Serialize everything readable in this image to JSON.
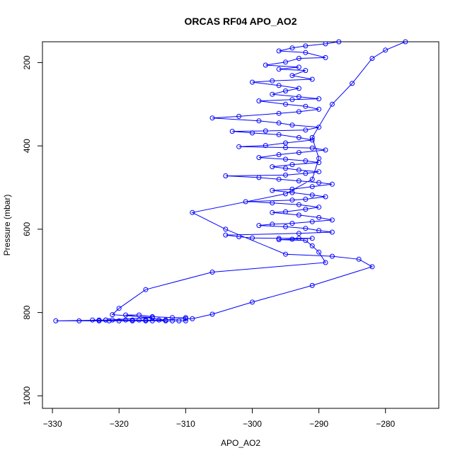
{
  "chart_data": {
    "type": "line",
    "title": "ORCAS RF04 APO_AO2",
    "xlabel": "APO_AO2",
    "ylabel": "Pressure (mbar)",
    "xlim": [
      -331.5,
      -272
    ],
    "ylim": [
      1030,
      150
    ],
    "y_reversed": true,
    "xticks": [
      -330,
      -320,
      -310,
      -300,
      -290,
      -280
    ],
    "yticks": [
      200,
      400,
      600,
      800,
      1000
    ],
    "grid": false,
    "series_color": "#0000ff",
    "marker": "open-circle",
    "series": [
      {
        "points": [
          [
            -287,
            150
          ],
          [
            -289,
            155
          ],
          [
            -292,
            160
          ],
          [
            -294,
            165
          ],
          [
            -296,
            172
          ],
          [
            -292,
            176
          ],
          [
            -289,
            188
          ],
          [
            -293,
            190
          ],
          [
            -295,
            199
          ],
          [
            -298,
            206
          ],
          [
            -293,
            211
          ],
          [
            -296,
            216
          ],
          [
            -292,
            219
          ],
          [
            -294,
            231
          ],
          [
            -291,
            240
          ],
          [
            -297,
            244
          ],
          [
            -300,
            247
          ],
          [
            -296,
            255
          ],
          [
            -293,
            262
          ],
          [
            -295,
            268
          ],
          [
            -297,
            276
          ],
          [
            -293,
            282
          ],
          [
            -290,
            287
          ],
          [
            -294,
            289
          ],
          [
            -299,
            292
          ],
          [
            -295,
            300
          ],
          [
            -292,
            305
          ],
          [
            -290,
            312
          ],
          [
            -293,
            318
          ],
          [
            -296,
            322
          ],
          [
            -302,
            329
          ],
          [
            -306,
            333
          ],
          [
            -299,
            340
          ],
          [
            -296,
            345
          ],
          [
            -294,
            350
          ],
          [
            -290,
            355
          ],
          [
            -292,
            362
          ],
          [
            -298,
            364
          ],
          [
            -303,
            365
          ],
          [
            -300,
            369
          ],
          [
            -296,
            373
          ],
          [
            -293,
            380
          ],
          [
            -291,
            386
          ],
          [
            -295,
            393
          ],
          [
            -298,
            399
          ],
          [
            -302,
            402
          ],
          [
            -295,
            404
          ],
          [
            -291,
            405
          ],
          [
            -289,
            410
          ],
          [
            -293,
            416
          ],
          [
            -296,
            421
          ],
          [
            -299,
            428
          ],
          [
            -295,
            432
          ],
          [
            -292,
            436
          ],
          [
            -290,
            440
          ],
          [
            -294,
            445
          ],
          [
            -297,
            450
          ],
          [
            -295,
            454
          ],
          [
            -293,
            458
          ],
          [
            -290,
            462
          ],
          [
            -292,
            466
          ],
          [
            -295,
            470
          ],
          [
            -304,
            472
          ],
          [
            -299,
            476
          ],
          [
            -296,
            480
          ],
          [
            -293,
            484
          ],
          [
            -290,
            488
          ],
          [
            -288,
            492
          ],
          [
            -291,
            498
          ],
          [
            -294,
            504
          ],
          [
            -297,
            507
          ],
          [
            -294,
            512
          ],
          [
            -291,
            518
          ],
          [
            -289,
            522
          ],
          [
            -292,
            528
          ],
          [
            -294,
            530
          ],
          [
            -301,
            534
          ],
          [
            -297,
            537
          ],
          [
            -293,
            541
          ],
          [
            -290,
            547
          ],
          [
            -292,
            552
          ],
          [
            -295,
            558
          ],
          [
            -297,
            560
          ],
          [
            -293,
            566
          ],
          [
            -290,
            572
          ],
          [
            -288,
            578
          ],
          [
            -291,
            582
          ],
          [
            -294,
            586
          ],
          [
            -297,
            588
          ],
          [
            -299,
            591
          ],
          [
            -295,
            594
          ],
          [
            -292,
            598
          ],
          [
            -290,
            603
          ],
          [
            -288,
            607
          ],
          [
            -293,
            610
          ],
          [
            -304,
            614
          ],
          [
            -302,
            618
          ],
          [
            -300,
            621
          ],
          [
            -296,
            622
          ],
          [
            -293,
            622
          ],
          [
            -291,
            622
          ],
          [
            -294,
            624
          ],
          [
            -296,
            625
          ],
          [
            -292,
            627
          ],
          [
            -291,
            640
          ],
          [
            -290,
            655
          ],
          [
            -289,
            680
          ],
          [
            -306,
            703
          ],
          [
            -316,
            745
          ],
          [
            -320,
            790
          ],
          [
            -321,
            805
          ],
          [
            -315,
            812
          ],
          [
            -322,
            818
          ],
          [
            -329.5,
            820
          ],
          [
            -326,
            820
          ],
          [
            -323,
            820
          ],
          [
            -321.5,
            820
          ],
          [
            -320,
            820
          ],
          [
            -318,
            820
          ],
          [
            -316,
            820
          ],
          [
            -315,
            820
          ],
          [
            -313,
            820
          ],
          [
            -312,
            820
          ],
          [
            -311,
            820
          ],
          [
            -310,
            820
          ],
          [
            -310,
            812
          ],
          [
            -312,
            812
          ],
          [
            -315,
            810
          ],
          [
            -317,
            806
          ],
          [
            -319,
            806
          ],
          [
            -313,
            818
          ],
          [
            -316,
            818
          ],
          [
            -319,
            818
          ],
          [
            -322,
            818
          ],
          [
            -323,
            818
          ],
          [
            -324,
            818
          ],
          [
            -321,
            818
          ],
          [
            -318,
            818
          ],
          [
            -317,
            818
          ],
          [
            -314,
            818
          ],
          [
            -310,
            815
          ],
          [
            -309,
            815
          ],
          [
            -306,
            804
          ],
          [
            -300,
            775
          ],
          [
            -291,
            735
          ],
          [
            -282,
            690
          ],
          [
            -284,
            672
          ],
          [
            -288,
            665
          ],
          [
            -295,
            660
          ],
          [
            -304,
            600
          ],
          [
            -309,
            560
          ],
          [
            -295,
            515
          ],
          [
            -291,
            480
          ],
          [
            -290,
            430
          ],
          [
            -291,
            380
          ],
          [
            -288,
            300
          ],
          [
            -285,
            250
          ],
          [
            -282,
            190
          ],
          [
            -280,
            170
          ],
          [
            -277,
            150
          ]
        ]
      }
    ]
  }
}
